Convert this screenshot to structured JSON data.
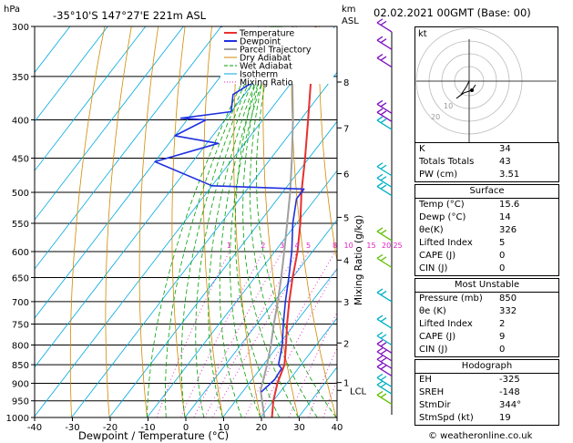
{
  "header": {
    "hpa_label": "hPa",
    "location": "-35°10'S  147°27'E  221m  ASL",
    "km_label": "km",
    "asl_label": "ASL",
    "datetime": "02.02.2021  00GMT  (Base: 00)"
  },
  "legend": [
    "Temperature",
    "Dewpoint",
    "Parcel Trajectory",
    "Dry Adiabat",
    "Wet Adiabat",
    "Isotherm",
    "Mixing Ratio"
  ],
  "colors": {
    "temperature": "#e83030",
    "dewpoint": "#2030e0",
    "parcel": "#a0a0a0",
    "dry_adiabat": "#d08a00",
    "wet_adiabat": "#00a000",
    "isotherm": "#00a8e0",
    "mixing_ratio": "#e020c0",
    "wind": "#8010c0",
    "wind_cyan": "#00b0c8",
    "wind_green": "#60c000"
  },
  "chart_data": {
    "type": "skew-t",
    "xlabel": "Dewpoint / Temperature (°C)",
    "ylabel_right": "Mixing Ratio (g/kg)",
    "x_ticks": [
      -40,
      -30,
      -20,
      -10,
      0,
      10,
      20,
      30,
      40
    ],
    "x_tick_labels": [
      "-40",
      "-30",
      "-20",
      "-10",
      "0",
      "10",
      "20",
      "30",
      "40"
    ],
    "pressure_levels": [
      300,
      350,
      400,
      450,
      500,
      550,
      600,
      650,
      700,
      750,
      800,
      850,
      900,
      950,
      1000
    ],
    "pressure_labels": [
      "300",
      "350",
      "400",
      "450",
      "500",
      "550",
      "600",
      "650",
      "700",
      "750",
      "800",
      "850",
      "900",
      "950",
      "1000"
    ],
    "km_ticks": [
      {
        "km": "8",
        "p": 356
      },
      {
        "km": "7",
        "p": 410
      },
      {
        "km": "6",
        "p": 472
      },
      {
        "km": "5",
        "p": 540
      },
      {
        "km": "4",
        "p": 616
      },
      {
        "km": "3",
        "p": 700
      },
      {
        "km": "2",
        "p": 795
      },
      {
        "km": "1",
        "p": 898
      }
    ],
    "lcl": {
      "label": "LCL",
      "p": 920
    },
    "mixing_ratio_labels": [
      {
        "label": "1",
        "t": -22
      },
      {
        "label": "2",
        "t": -13
      },
      {
        "label": "3",
        "t": -8
      },
      {
        "label": "4",
        "t": -4
      },
      {
        "label": "5",
        "t": -1
      },
      {
        "label": "8",
        "t": 6
      },
      {
        "label": "10",
        "t": 9
      },
      {
        "label": "15",
        "t": 15
      },
      {
        "label": "20",
        "t": 19
      },
      {
        "label": "25",
        "t": 22
      }
    ],
    "temperature": [
      {
        "p": 1000,
        "t": 23
      },
      {
        "p": 950,
        "t": 20
      },
      {
        "p": 900,
        "t": 17.5
      },
      {
        "p": 850,
        "t": 15.6
      },
      {
        "p": 800,
        "t": 12
      },
      {
        "p": 750,
        "t": 8
      },
      {
        "p": 700,
        "t": 4
      },
      {
        "p": 650,
        "t": 0
      },
      {
        "p": 600,
        "t": -4
      },
      {
        "p": 550,
        "t": -9
      },
      {
        "p": 500,
        "t": -15
      },
      {
        "p": 450,
        "t": -21
      },
      {
        "p": 400,
        "t": -28
      },
      {
        "p": 350,
        "t": -36
      },
      {
        "p": 300,
        "t": -45
      }
    ],
    "dewpoint": [
      {
        "p": 925,
        "t": 15
      },
      {
        "p": 890,
        "t": 16
      },
      {
        "p": 860,
        "t": 15.6
      },
      {
        "p": 850,
        "t": 14
      },
      {
        "p": 800,
        "t": 11
      },
      {
        "p": 750,
        "t": 7
      },
      {
        "p": 700,
        "t": 3
      },
      {
        "p": 650,
        "t": -1
      },
      {
        "p": 600,
        "t": -5.5
      },
      {
        "p": 550,
        "t": -11
      },
      {
        "p": 510,
        "t": -15
      },
      {
        "p": 495,
        "t": -15
      },
      {
        "p": 490,
        "t": -40
      },
      {
        "p": 455,
        "t": -60
      },
      {
        "p": 430,
        "t": -47
      },
      {
        "p": 420,
        "t": -60
      },
      {
        "p": 400,
        "t": -55
      },
      {
        "p": 398,
        "t": -62
      },
      {
        "p": 390,
        "t": -50
      },
      {
        "p": 370,
        "t": -53
      },
      {
        "p": 345,
        "t": -48
      },
      {
        "p": 337,
        "t": -60
      },
      {
        "p": 320,
        "t": -63
      },
      {
        "p": 300,
        "t": -70
      }
    ],
    "parcel": [
      {
        "p": 1000,
        "t": 21
      },
      {
        "p": 920,
        "t": 14.5
      },
      {
        "p": 850,
        "t": 11
      },
      {
        "p": 800,
        "t": 8
      },
      {
        "p": 750,
        "t": 4.5
      },
      {
        "p": 700,
        "t": 1
      },
      {
        "p": 650,
        "t": -3
      },
      {
        "p": 600,
        "t": -7.5
      },
      {
        "p": 550,
        "t": -12.5
      },
      {
        "p": 500,
        "t": -18
      },
      {
        "p": 450,
        "t": -24.5
      },
      {
        "p": 400,
        "t": -32
      },
      {
        "p": 350,
        "t": -41
      },
      {
        "p": 300,
        "t": -51
      }
    ]
  },
  "hodograph": {
    "unit_label": "kt",
    "ring_labels": [
      "10",
      "20"
    ]
  },
  "indices": [
    {
      "key": "K",
      "value": "34"
    },
    {
      "key": "Totals Totals",
      "value": "43"
    },
    {
      "key": "PW (cm)",
      "value": "3.51"
    }
  ],
  "surface": {
    "title": "Surface",
    "rows": [
      {
        "key": "Temp (°C)",
        "value": "15.6"
      },
      {
        "key": "Dewp (°C)",
        "value": "14"
      },
      {
        "key": "θe(K)",
        "value": "326"
      },
      {
        "key": "Lifted Index",
        "value": "5"
      },
      {
        "key": "CAPE (J)",
        "value": "0"
      },
      {
        "key": "CIN (J)",
        "value": "0"
      }
    ]
  },
  "most_unstable": {
    "title": "Most Unstable",
    "rows": [
      {
        "key": "Pressure (mb)",
        "value": "850"
      },
      {
        "key": "θe (K)",
        "value": "332"
      },
      {
        "key": "Lifted Index",
        "value": "2"
      },
      {
        "key": "CAPE (J)",
        "value": "9"
      },
      {
        "key": "CIN (J)",
        "value": "0"
      }
    ]
  },
  "hodograph_table": {
    "title": "Hodograph",
    "rows": [
      {
        "key": "EH",
        "value": "-325"
      },
      {
        "key": "SREH",
        "value": "-148"
      },
      {
        "key": "StmDir",
        "value": "344°"
      },
      {
        "key": "StmSpd (kt)",
        "value": "19"
      }
    ]
  },
  "credit": "© weatheronline.co.uk"
}
